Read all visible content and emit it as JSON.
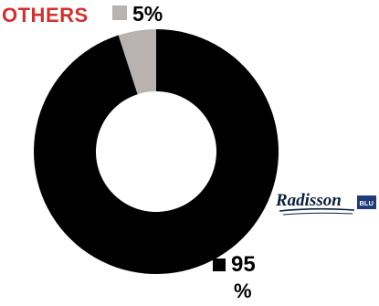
{
  "chart_data": {
    "type": "pie",
    "hole": true,
    "slices": [
      {
        "label": "OTHERS",
        "value": 5,
        "value_text": "5%",
        "color": "#b8b3b0"
      },
      {
        "label": "",
        "value": 95,
        "value_text": "95",
        "unit_text": "%",
        "color": "#000000"
      }
    ],
    "legend_title_color": "#d32f2f"
  },
  "logo": {
    "text": "Radisson",
    "badge_text": "BLU",
    "icon": "radisson-logo"
  }
}
